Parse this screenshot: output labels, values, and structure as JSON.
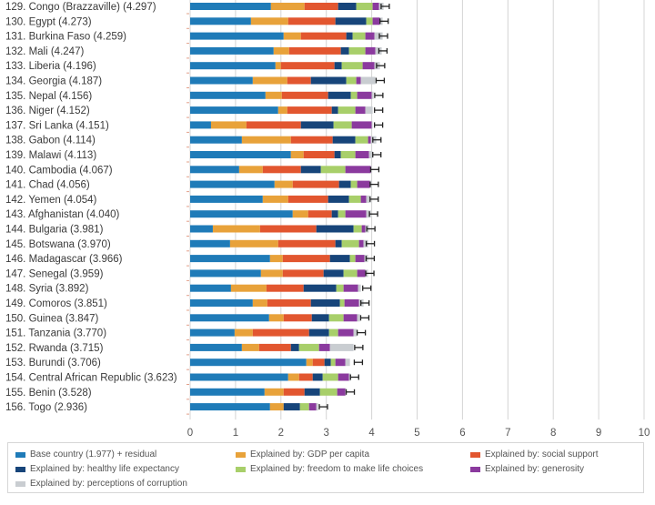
{
  "chart_data": {
    "type": "bar",
    "orientation": "horizontal",
    "stacked": true,
    "title": "",
    "xlabel": "",
    "ylabel": "",
    "xlim": [
      0,
      10
    ],
    "xticks": [
      "0",
      "1",
      "2",
      "3",
      "4",
      "5",
      "6",
      "7",
      "8",
      "9",
      "10"
    ],
    "grid": true,
    "legend_position": "bottom",
    "series": [
      {
        "name": "Base country (1.977) + residual",
        "color": "#1f7bb8",
        "values": [
          1.78,
          1.34,
          2.06,
          1.84,
          1.88,
          1.38,
          1.66,
          1.94,
          0.46,
          1.14,
          2.22,
          1.08,
          1.86,
          1.6,
          2.26,
          0.5,
          0.88,
          1.76,
          1.56,
          0.9,
          1.38,
          1.74,
          0.98,
          1.14,
          2.56,
          2.16,
          1.64,
          1.76
        ]
      },
      {
        "name": "Explained by: GDP per capita",
        "color": "#e8a23a",
        "values": [
          0.74,
          0.82,
          0.38,
          0.34,
          0.12,
          0.76,
          0.36,
          0.2,
          0.78,
          1.08,
          0.28,
          0.52,
          0.4,
          0.56,
          0.34,
          1.04,
          1.06,
          0.28,
          0.48,
          0.78,
          0.32,
          0.32,
          0.4,
          0.38,
          0.14,
          0.24,
          0.42,
          0.3
        ]
      },
      {
        "name": "Explained by: social support",
        "color": "#e2562f",
        "values": [
          0.74,
          1.04,
          1.0,
          1.14,
          1.18,
          0.52,
          1.02,
          0.98,
          1.2,
          0.92,
          0.68,
          0.84,
          1.02,
          0.88,
          0.52,
          1.24,
          1.26,
          1.04,
          0.9,
          0.82,
          0.96,
          0.62,
          1.24,
          0.7,
          0.26,
          0.3,
          0.46,
          0.0
        ]
      },
      {
        "name": "Explained by: healthy life expectancy",
        "color": "#17457a",
        "values": [
          0.4,
          0.68,
          0.14,
          0.18,
          0.16,
          0.78,
          0.5,
          0.14,
          0.72,
          0.5,
          0.14,
          0.44,
          0.26,
          0.46,
          0.14,
          0.82,
          0.14,
          0.44,
          0.44,
          0.72,
          0.64,
          0.38,
          0.44,
          0.18,
          0.14,
          0.22,
          0.34,
          0.36
        ]
      },
      {
        "name": "Explained by: freedom to make life choices",
        "color": "#a8cf6a",
        "values": [
          0.36,
          0.14,
          0.28,
          0.36,
          0.46,
          0.22,
          0.14,
          0.38,
          0.4,
          0.28,
          0.32,
          0.54,
          0.14,
          0.26,
          0.16,
          0.18,
          0.38,
          0.12,
          0.3,
          0.16,
          0.1,
          0.32,
          0.2,
          0.44,
          0.1,
          0.34,
          0.38,
          0.2
        ]
      },
      {
        "name": "Explained by: generosity",
        "color": "#8b3a9e",
        "values": [
          0.14,
          0.16,
          0.2,
          0.22,
          0.26,
          0.1,
          0.32,
          0.22,
          0.44,
          0.06,
          0.3,
          0.56,
          0.28,
          0.12,
          0.46,
          0.08,
          0.1,
          0.2,
          0.18,
          0.32,
          0.32,
          0.3,
          0.34,
          0.24,
          0.22,
          0.24,
          0.18,
          0.16
        ]
      },
      {
        "name": "Explained by: perceptions of corruption",
        "color": "#c9cdd1",
        "values": [
          0.1,
          0.06,
          0.18,
          0.14,
          0.12,
          0.32,
          0.04,
          0.16,
          0.02,
          0.12,
          0.08,
          0.02,
          0.04,
          0.1,
          0.1,
          0.08,
          0.1,
          0.08,
          0.06,
          0.06,
          0.1,
          0.06,
          0.08,
          0.52,
          0.1,
          0.04,
          0.02,
          0.04
        ]
      }
    ],
    "categories": [
      "129. Congo (Brazzaville) (4.297)",
      "130. Egypt (4.273)",
      "131. Burkina Faso (4.259)",
      "132. Mali (4.247)",
      "133. Liberia (4.196)",
      "134. Georgia (4.187)",
      "135. Nepal (4.156)",
      "136. Niger (4.152)",
      "137. Sri Lanka (4.151)",
      "138. Gabon (4.114)",
      "139. Malawi (4.113)",
      "140. Cambodia (4.067)",
      "141. Chad (4.056)",
      "142. Yemen (4.054)",
      "143. Afghanistan (4.040)",
      "144. Bulgaria (3.981)",
      "145. Botswana (3.970)",
      "146. Madagascar (3.966)",
      "147. Senegal (3.959)",
      "148. Syria (3.892)",
      "149. Comoros (3.851)",
      "150. Guinea (3.847)",
      "151. Tanzania (3.770)",
      "152. Rwanda (3.715)",
      "153. Burundi (3.706)",
      "154. Central African Republic (3.623)",
      "155. Benin (3.528)",
      "156. Togo (2.936)"
    ],
    "totals": [
      4.297,
      4.273,
      4.259,
      4.247,
      4.196,
      4.187,
      4.156,
      4.152,
      4.151,
      4.114,
      4.113,
      4.067,
      4.056,
      4.054,
      4.04,
      3.981,
      3.97,
      3.966,
      3.959,
      3.892,
      3.851,
      3.847,
      3.77,
      3.715,
      3.706,
      3.623,
      3.528,
      2.936
    ],
    "error_bar_halfwidth": 0.09
  }
}
